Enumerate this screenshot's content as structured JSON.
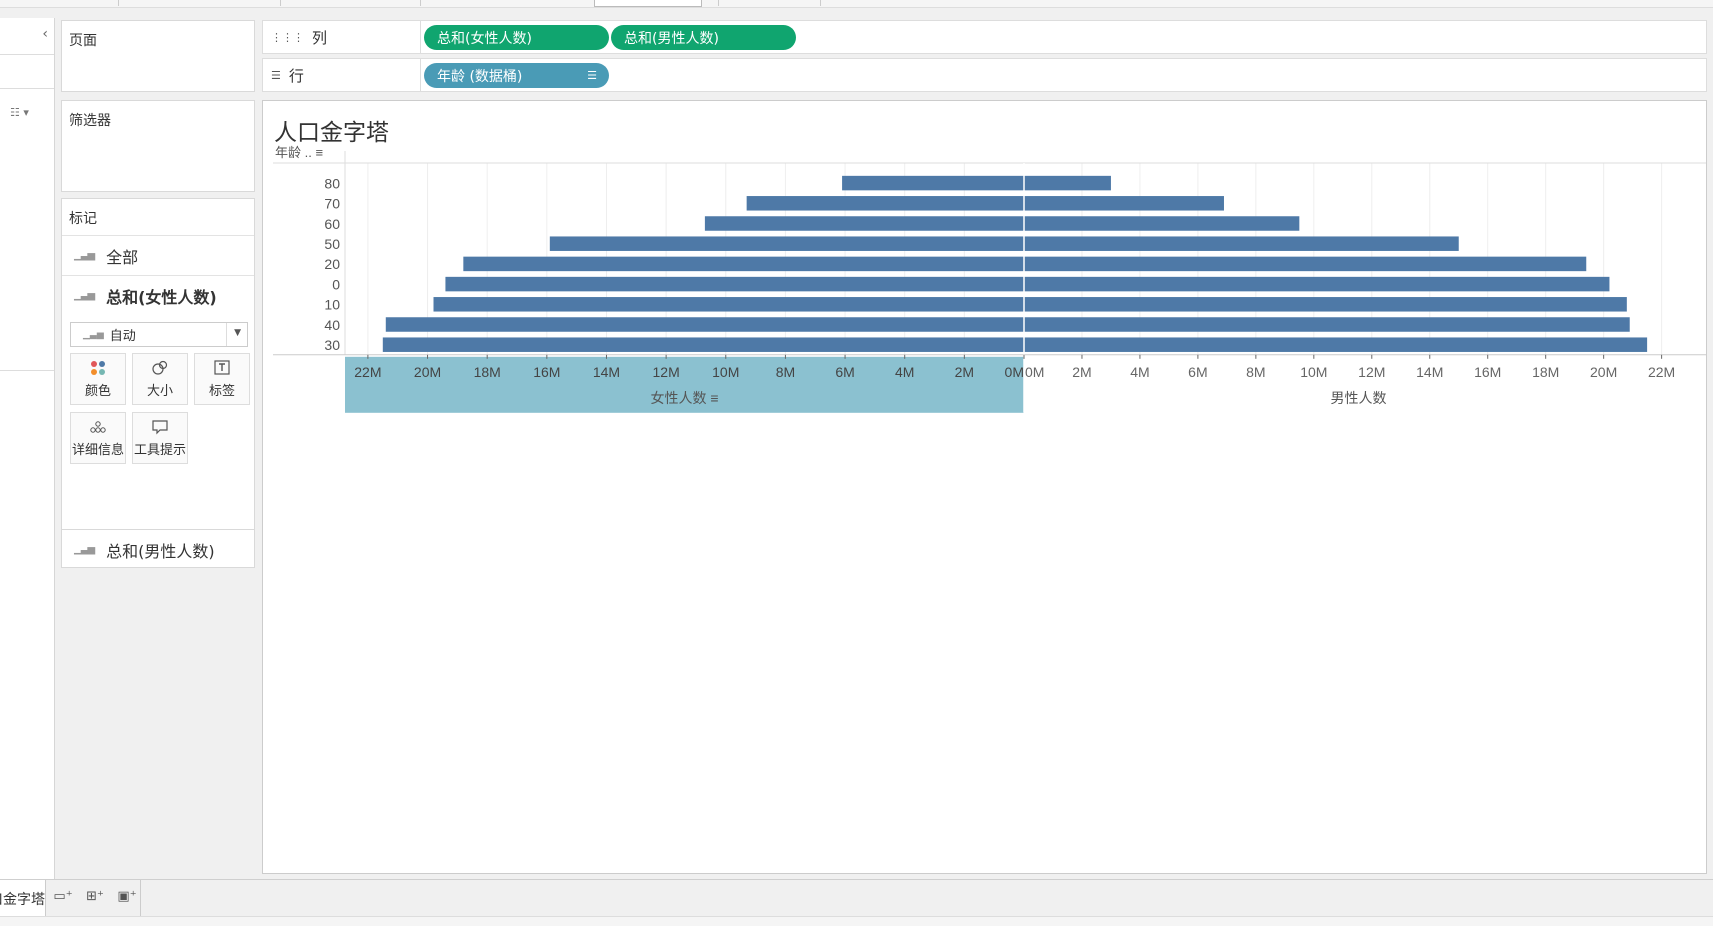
{
  "toolbar": {
    "sort_select": "",
    "right_label": ""
  },
  "left_panel": {
    "collapse_icon": "chevron-left-icon"
  },
  "pages_card": {
    "title": "页面"
  },
  "filters_card": {
    "title": "筛选器"
  },
  "marks_card": {
    "title": "标记",
    "all_label": "全部",
    "active_label": "总和(女性人数)",
    "mark_type": "自动",
    "buttons": [
      {
        "label": "颜色",
        "icon": "color-dots-icon"
      },
      {
        "label": "大小",
        "icon": "size-icon"
      },
      {
        "label": "标签",
        "icon": "label-icon"
      },
      {
        "label": "详细信息",
        "icon": "detail-icon"
      },
      {
        "label": "工具提示",
        "icon": "tooltip-icon"
      }
    ],
    "other_label": "总和(男性人数)"
  },
  "shelves": {
    "columns": {
      "label": "列",
      "pills": [
        "总和(女性人数)",
        "总和(男性人数)"
      ]
    },
    "rows": {
      "label": "行",
      "pills": [
        "年龄 (数据桶)"
      ]
    }
  },
  "view": {
    "title": "人口金字塔"
  },
  "chart_data": {
    "type": "bar",
    "title": "人口金字塔",
    "row_header": "年龄 ..",
    "categories": [
      "80",
      "70",
      "60",
      "50",
      "20",
      "0",
      "10",
      "40",
      "30"
    ],
    "series": [
      {
        "name": "女性人数",
        "values": [
          6.1,
          9.3,
          10.7,
          15.9,
          18.8,
          19.4,
          19.8,
          21.4,
          21.5
        ]
      },
      {
        "name": "男性人数",
        "values": [
          3.0,
          6.9,
          9.5,
          15.0,
          19.4,
          20.2,
          20.8,
          20.9,
          21.5
        ]
      }
    ],
    "left_ticks": [
      "22M",
      "20M",
      "18M",
      "16M",
      "14M",
      "12M",
      "10M",
      "8M",
      "6M",
      "4M",
      "2M",
      "0M"
    ],
    "right_ticks": [
      "0M",
      "2M",
      "4M",
      "6M",
      "8M",
      "10M",
      "12M",
      "14M",
      "16M",
      "18M",
      "20M",
      "22M"
    ],
    "left_axis_label": "女性人数",
    "right_axis_label": "男性人数",
    "xlim": [
      0,
      22.6
    ],
    "left_axis_reversed": true,
    "bar_color": "#4e79a7",
    "highlight_color": "#8bc1d0"
  },
  "tabs": {
    "sheet": "人口金字塔"
  }
}
